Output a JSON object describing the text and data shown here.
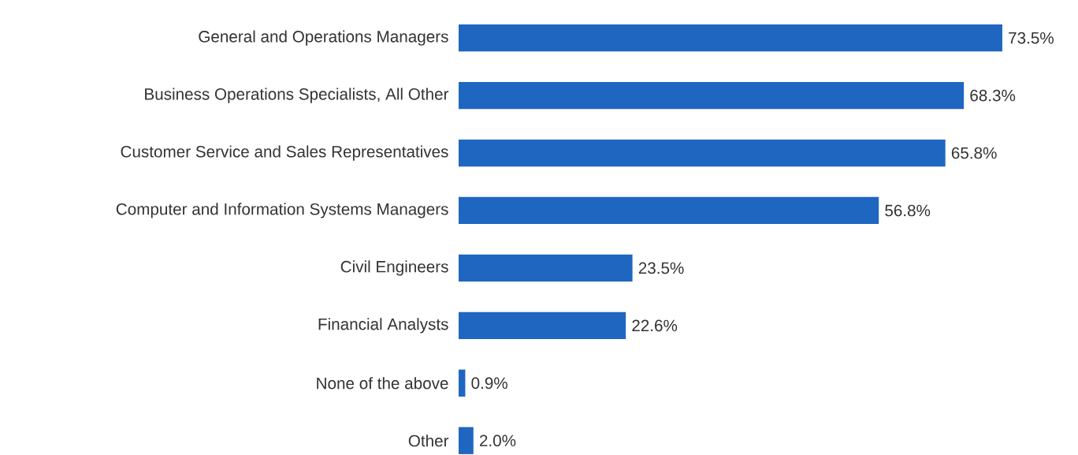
{
  "chart_data": {
    "type": "bar",
    "orientation": "horizontal",
    "color": "#1f66c1",
    "categories": [
      "General and Operations Managers",
      "Business Operations Specialists, All Other",
      "Customer Service and Sales Representatives",
      "Computer and Information Systems Managers",
      "Civil Engineers",
      "Financial Analysts",
      "None of the above",
      "Other"
    ],
    "values": [
      73.5,
      68.3,
      65.8,
      56.8,
      23.5,
      22.6,
      0.9,
      2.0
    ],
    "value_labels": [
      "73.5%",
      "68.3%",
      "65.8%",
      "56.8%",
      "23.5%",
      "22.6%",
      "0.9%",
      "2.0%"
    ]
  }
}
